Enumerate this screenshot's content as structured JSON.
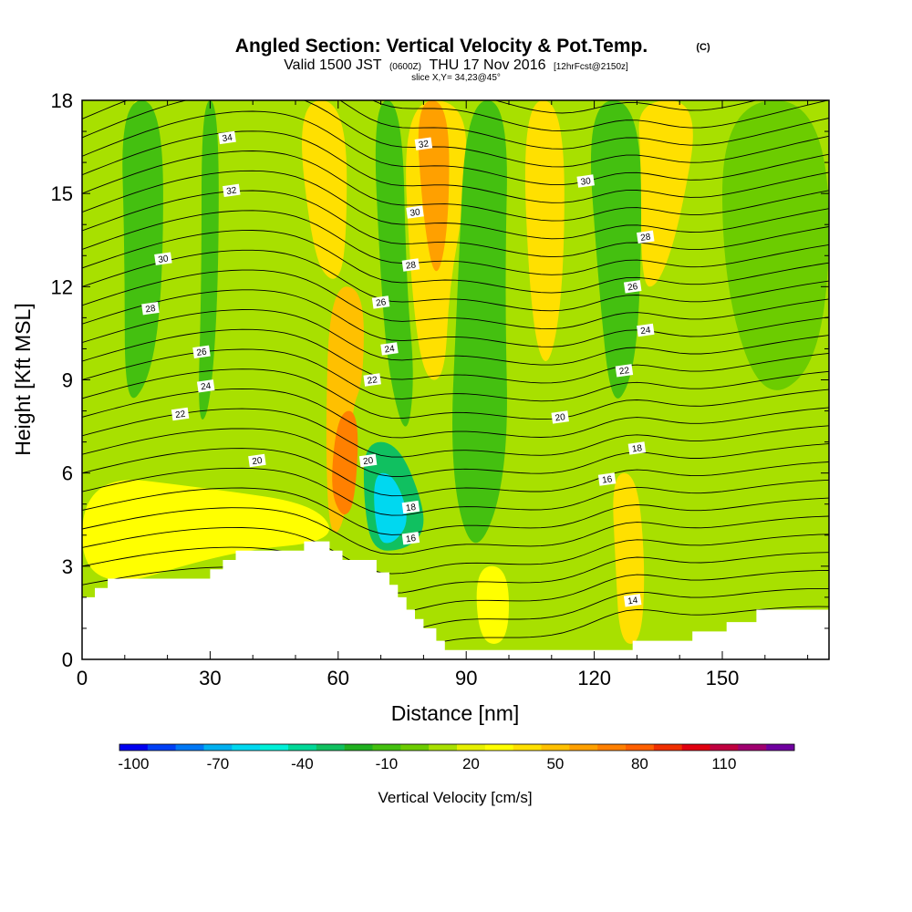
{
  "chart_data": {
    "type": "heatmap",
    "title": "Angled Section: Vertical Velocity & Pot.Temp.",
    "title_unit": "(C)",
    "subtitle_parts": [
      "Valid 1500 JST",
      "(0600Z)",
      "THU 17 Nov 2016",
      "[12hrFcst@2150z]"
    ],
    "slice_label": "slice X,Y= 34,23@45°",
    "xlabel": "Distance [nm]",
    "ylabel": "Height [Kft MSL]",
    "xlim": [
      0,
      175
    ],
    "ylim": [
      0,
      18
    ],
    "x_ticks": [
      0,
      30,
      60,
      90,
      120,
      150
    ],
    "y_ticks": [
      0,
      3,
      6,
      9,
      12,
      15,
      18
    ],
    "colorbar": {
      "label": "Vertical Velocity [cm/s]",
      "tick_labels": [
        "-100",
        "-70",
        "-40",
        "-10",
        "20",
        "50",
        "80",
        "110"
      ],
      "colors": [
        "#0000f0",
        "#0040f5",
        "#0078f5",
        "#00b0f0",
        "#00d8f0",
        "#00f0d8",
        "#00d898",
        "#10c060",
        "#20b020",
        "#44c010",
        "#6ccc00",
        "#a8e000",
        "#e6f000",
        "#ffff00",
        "#ffe000",
        "#ffc000",
        "#ffa000",
        "#ff8000",
        "#ff6000",
        "#f03000",
        "#e00010",
        "#c00040",
        "#a00070",
        "#7000a0"
      ]
    },
    "velocity_regions": [
      {
        "level": 20,
        "points": [
          [
            10,
            18
          ],
          [
            16,
            18
          ],
          [
            14,
            12
          ],
          [
            10,
            9
          ]
        ]
      },
      {
        "level": -25,
        "points": [
          [
            9,
            18
          ],
          [
            19,
            18
          ],
          [
            19,
            12
          ],
          [
            16,
            9
          ],
          [
            10,
            8
          ],
          [
            10,
            13
          ]
        ]
      },
      {
        "level": -25,
        "points": [
          [
            28,
            18
          ],
          [
            32,
            18
          ],
          [
            32,
            12
          ],
          [
            30,
            8
          ],
          [
            27,
            7.5
          ],
          [
            28,
            12
          ]
        ]
      },
      {
        "level": 30,
        "points": [
          [
            50,
            18
          ],
          [
            62,
            18
          ],
          [
            62,
            13
          ],
          [
            59,
            12
          ],
          [
            54,
            13
          ]
        ]
      },
      {
        "level": 35,
        "points": [
          [
            58,
            12
          ],
          [
            66,
            12
          ],
          [
            66,
            9
          ],
          [
            63,
            8
          ],
          [
            62,
            4.5
          ],
          [
            58,
            3.8
          ],
          [
            57,
            7
          ]
        ]
      },
      {
        "level": 55,
        "points": [
          [
            60,
            8
          ],
          [
            65,
            8
          ],
          [
            64,
            5
          ],
          [
            61,
            4.5
          ],
          [
            58,
            5.5
          ]
        ]
      },
      {
        "level": -25,
        "points": [
          [
            68,
            18
          ],
          [
            75,
            18
          ],
          [
            76,
            12
          ],
          [
            78,
            9
          ],
          [
            76,
            7
          ],
          [
            72,
            9
          ],
          [
            70,
            12
          ]
        ]
      },
      {
        "level": -40,
        "points": [
          [
            66,
            7
          ],
          [
            74,
            7
          ],
          [
            80,
            5
          ],
          [
            80,
            4
          ],
          [
            75,
            3.5
          ],
          [
            68,
            3.5
          ],
          [
            66,
            5
          ]
        ]
      },
      {
        "level": -70,
        "points": [
          [
            68,
            6
          ],
          [
            73,
            6
          ],
          [
            77,
            4.5
          ],
          [
            73,
            3.7
          ],
          [
            69,
            3.8
          ]
        ]
      },
      {
        "level": 30,
        "points": [
          [
            75,
            18
          ],
          [
            90,
            18
          ],
          [
            90,
            15
          ],
          [
            86,
            12
          ],
          [
            85,
            9
          ],
          [
            80,
            9
          ],
          [
            77,
            12
          ]
        ]
      },
      {
        "level": 50,
        "points": [
          [
            78,
            18
          ],
          [
            86,
            18
          ],
          [
            86,
            14
          ],
          [
            83,
            12
          ],
          [
            80,
            14
          ]
        ]
      },
      {
        "level": -25,
        "points": [
          [
            90,
            18
          ],
          [
            100,
            18
          ],
          [
            99,
            12
          ],
          [
            100,
            6
          ],
          [
            92,
            3
          ],
          [
            86,
            6
          ],
          [
            88,
            12
          ]
        ]
      },
      {
        "level": 25,
        "points": [
          [
            103,
            18
          ],
          [
            113,
            18
          ],
          [
            113,
            12
          ],
          [
            109,
            9
          ],
          [
            105,
            11
          ]
        ]
      },
      {
        "level": -25,
        "points": [
          [
            118,
            18
          ],
          [
            131,
            18
          ],
          [
            131,
            12
          ],
          [
            129,
            9
          ],
          [
            124,
            8
          ],
          [
            121,
            12
          ]
        ]
      },
      {
        "level": 30,
        "points": [
          [
            130,
            18
          ],
          [
            145,
            18
          ],
          [
            140,
            14
          ],
          [
            135,
            12
          ],
          [
            131,
            12
          ],
          [
            131,
            16
          ]
        ]
      },
      {
        "level": 25,
        "points": [
          [
            124,
            6
          ],
          [
            130,
            6
          ],
          [
            132,
            3
          ],
          [
            131,
            0.5
          ],
          [
            126,
            0.5
          ],
          [
            125,
            3
          ]
        ]
      },
      {
        "level": -15,
        "points": [
          [
            150,
            18
          ],
          [
            175,
            18
          ],
          [
            175,
            10
          ],
          [
            160,
            8
          ],
          [
            150,
            12
          ]
        ]
      },
      {
        "level": 15,
        "points": [
          [
            0,
            6
          ],
          [
            30,
            5.5
          ],
          [
            55,
            5
          ],
          [
            60,
            3.8
          ],
          [
            35,
            3.5
          ],
          [
            0,
            2
          ]
        ]
      },
      {
        "level": 20,
        "points": [
          [
            92,
            3
          ],
          [
            100,
            3
          ],
          [
            100,
            0.5
          ],
          [
            93,
            0.5
          ]
        ]
      }
    ],
    "theta_labels": [
      {
        "value": "34",
        "x": 34,
        "y": 16.8
      },
      {
        "value": "32",
        "x": 80,
        "y": 16.6
      },
      {
        "value": "32",
        "x": 35,
        "y": 15.1
      },
      {
        "value": "30",
        "x": 78,
        "y": 14.4
      },
      {
        "value": "30",
        "x": 118,
        "y": 15.4
      },
      {
        "value": "30",
        "x": 19,
        "y": 12.9
      },
      {
        "value": "28",
        "x": 77,
        "y": 12.7
      },
      {
        "value": "28",
        "x": 132,
        "y": 13.6
      },
      {
        "value": "28",
        "x": 16,
        "y": 11.3
      },
      {
        "value": "26",
        "x": 70,
        "y": 11.5
      },
      {
        "value": "26",
        "x": 129,
        "y": 12.0
      },
      {
        "value": "26",
        "x": 28,
        "y": 9.9
      },
      {
        "value": "24",
        "x": 72,
        "y": 10.0
      },
      {
        "value": "24",
        "x": 132,
        "y": 10.6
      },
      {
        "value": "24",
        "x": 29,
        "y": 8.8
      },
      {
        "value": "22",
        "x": 68,
        "y": 9.0
      },
      {
        "value": "22",
        "x": 127,
        "y": 9.3
      },
      {
        "value": "22",
        "x": 23,
        "y": 7.9
      },
      {
        "value": "20",
        "x": 112,
        "y": 7.8
      },
      {
        "value": "20",
        "x": 41,
        "y": 6.4
      },
      {
        "value": "20",
        "x": 67,
        "y": 6.4
      },
      {
        "value": "18",
        "x": 130,
        "y": 6.8
      },
      {
        "value": "18",
        "x": 77,
        "y": 4.9
      },
      {
        "value": "16",
        "x": 123,
        "y": 5.8
      },
      {
        "value": "16",
        "x": 77,
        "y": 3.9
      },
      {
        "value": "14",
        "x": 129,
        "y": 1.9
      }
    ],
    "terrain": [
      [
        0,
        2.0
      ],
      [
        3,
        2.0
      ],
      [
        3,
        2.3
      ],
      [
        6,
        2.3
      ],
      [
        6,
        2.6
      ],
      [
        30,
        2.6
      ],
      [
        30,
        2.9
      ],
      [
        33,
        2.9
      ],
      [
        33,
        3.2
      ],
      [
        36,
        3.2
      ],
      [
        36,
        3.5
      ],
      [
        52,
        3.5
      ],
      [
        52,
        3.8
      ],
      [
        58,
        3.8
      ],
      [
        58,
        3.5
      ],
      [
        61,
        3.5
      ],
      [
        61,
        3.2
      ],
      [
        69,
        3.2
      ],
      [
        69,
        2.8
      ],
      [
        72,
        2.8
      ],
      [
        72,
        2.4
      ],
      [
        74,
        2.4
      ],
      [
        74,
        2.0
      ],
      [
        76,
        2.0
      ],
      [
        76,
        1.6
      ],
      [
        78,
        1.6
      ],
      [
        78,
        1.3
      ],
      [
        80,
        1.3
      ],
      [
        80,
        1.0
      ],
      [
        83,
        1.0
      ],
      [
        83,
        0.6
      ],
      [
        85,
        0.6
      ],
      [
        85,
        0.3
      ],
      [
        129,
        0.3
      ],
      [
        129,
        0.6
      ],
      [
        143,
        0.6
      ],
      [
        143,
        0.9
      ],
      [
        151,
        0.9
      ],
      [
        151,
        1.2
      ],
      [
        158,
        1.2
      ],
      [
        158,
        1.6
      ],
      [
        175,
        1.6
      ]
    ]
  }
}
